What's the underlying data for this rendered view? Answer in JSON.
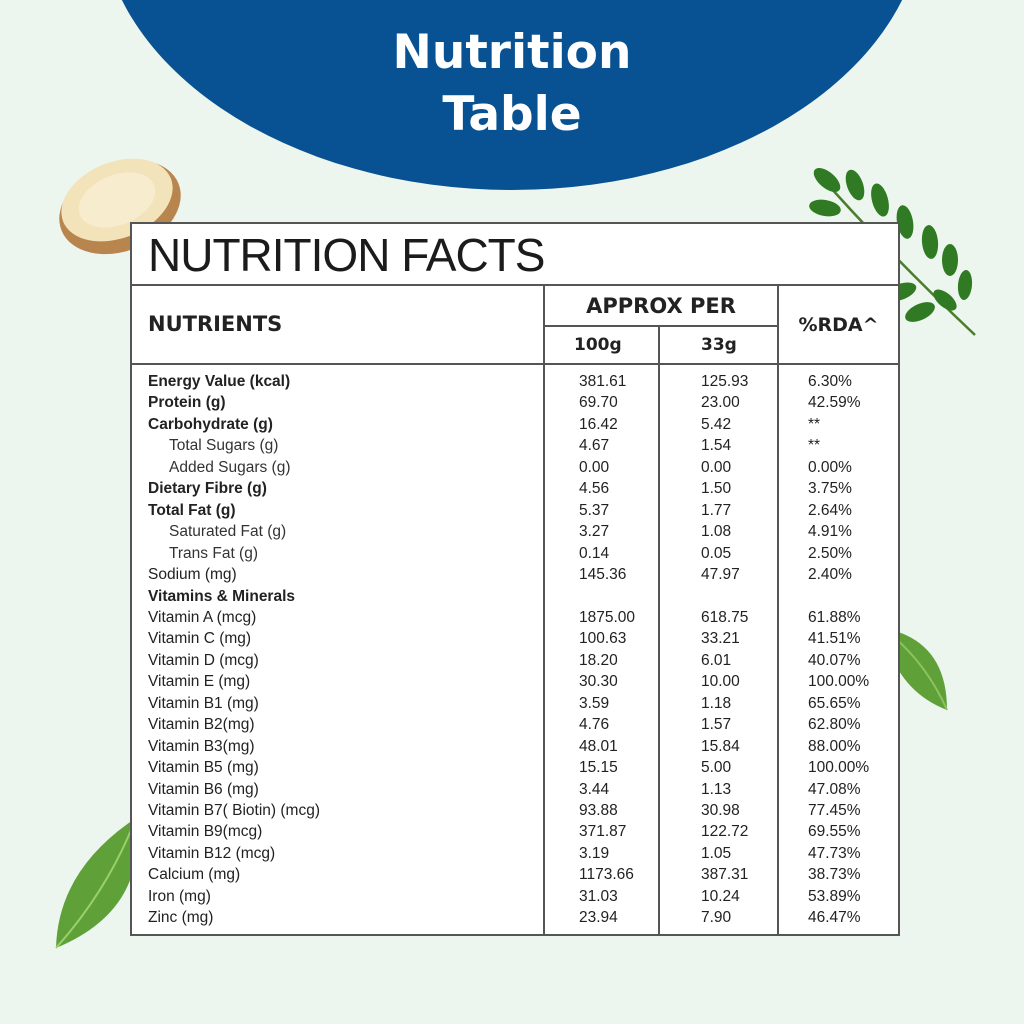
{
  "banner": {
    "title_line1": "Nutrition",
    "title_line2": "Table",
    "color": "#085192"
  },
  "facts": {
    "heading": "NUTRITION FACTS",
    "col_nutrients": "NUTRIENTS",
    "col_approx_per": "APPROX PER",
    "col_100g": "100g",
    "col_33g": "33g",
    "col_rda": "%RDA^"
  },
  "rows": [
    {
      "name": "Energy Value (kcal)",
      "v100": "381.61",
      "v33": "125.93",
      "rda": "6.30%",
      "style": "bold"
    },
    {
      "name": "Protein (g)",
      "v100": "69.70",
      "v33": "23.00",
      "rda": "42.59%",
      "style": "bold"
    },
    {
      "name": "Carbohydrate (g)",
      "v100": "16.42",
      "v33": "5.42",
      "rda": "**",
      "style": "bold"
    },
    {
      "name": "Total Sugars (g)",
      "v100": "4.67",
      "v33": "1.54",
      "rda": "**",
      "style": "sub"
    },
    {
      "name": "Added Sugars (g)",
      "v100": "0.00",
      "v33": "0.00",
      "rda": "0.00%",
      "style": "sub"
    },
    {
      "name": "Dietary Fibre (g)",
      "v100": "4.56",
      "v33": "1.50",
      "rda": "3.75%",
      "style": "bold"
    },
    {
      "name": "Total Fat (g)",
      "v100": "5.37",
      "v33": "1.77",
      "rda": "2.64%",
      "style": "bold"
    },
    {
      "name": "Saturated Fat (g)",
      "v100": "3.27",
      "v33": "1.08",
      "rda": "4.91%",
      "style": "sub"
    },
    {
      "name": "Trans Fat (g)",
      "v100": "0.14",
      "v33": "0.05",
      "rda": "2.50%",
      "style": "sub"
    },
    {
      "name": "Sodium (mg)",
      "v100": "145.36",
      "v33": "47.97",
      "rda": "2.40%",
      "style": "normal"
    },
    {
      "name": "Vitamins & Minerals",
      "v100": "",
      "v33": "",
      "rda": "",
      "style": "bold"
    },
    {
      "name": "Vitamin A (mcg)",
      "v100": "1875.00",
      "v33": "618.75",
      "rda": "61.88%",
      "style": "normal"
    },
    {
      "name": "Vitamin C (mg)",
      "v100": "100.63",
      "v33": "33.21",
      "rda": "41.51%",
      "style": "normal"
    },
    {
      "name": "Vitamin D (mcg)",
      "v100": "18.20",
      "v33": "6.01",
      "rda": "40.07%",
      "style": "normal"
    },
    {
      "name": "Vitamin E (mg)",
      "v100": "30.30",
      "v33": "10.00",
      "rda": "100.00%",
      "style": "normal"
    },
    {
      "name": "Vitamin B1 (mg)",
      "v100": "3.59",
      "v33": "1.18",
      "rda": "65.65%",
      "style": "normal"
    },
    {
      "name": "Vitamin B2(mg)",
      "v100": "4.76",
      "v33": "1.57",
      "rda": "62.80%",
      "style": "normal"
    },
    {
      "name": "Vitamin B3(mg)",
      "v100": "48.01",
      "v33": "15.84",
      "rda": "88.00%",
      "style": "normal"
    },
    {
      "name": "Vitamin B5 (mg)",
      "v100": "15.15",
      "v33": "5.00",
      "rda": "100.00%",
      "style": "normal"
    },
    {
      "name": "Vitamin B6 (mg)",
      "v100": "3.44",
      "v33": "1.13",
      "rda": "47.08%",
      "style": "normal"
    },
    {
      "name": "Vitamin B7( Biotin) (mcg)",
      "v100": "93.88",
      "v33": "30.98",
      "rda": "77.45%",
      "style": "normal"
    },
    {
      "name": "Vitamin B9(mcg)",
      "v100": "371.87",
      "v33": "122.72",
      "rda": "69.55%",
      "style": "normal"
    },
    {
      "name": "Vitamin B12 (mcg)",
      "v100": "3.19",
      "v33": "1.05",
      "rda": "47.73%",
      "style": "normal"
    },
    {
      "name": "Calcium (mg)",
      "v100": "1173.66",
      "v33": "387.31",
      "rda": "38.73%",
      "style": "normal"
    },
    {
      "name": "Iron (mg)",
      "v100": "31.03",
      "v33": "10.24",
      "rda": "53.89%",
      "style": "normal"
    },
    {
      "name": "Zinc (mg)",
      "v100": "23.94",
      "v33": "7.90",
      "rda": "46.47%",
      "style": "normal"
    }
  ],
  "decorations": {
    "root_slice_icon": "ginger-root-slice-icon",
    "leaf_icon": "green-leaf-icon",
    "sprig_icon": "moringa-sprig-icon"
  }
}
